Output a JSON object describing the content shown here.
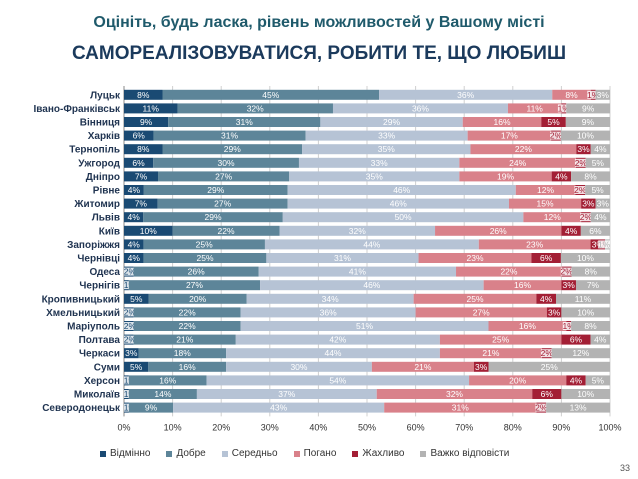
{
  "title": "Оцініть, будь ласка, рівень можливостей у Вашому місті",
  "subtitle": "САМОРЕАЛІЗОВУВАТИСЯ, РОБИТИ ТЕ, ЩО ЛЮБИШ",
  "page_number": "33",
  "chart_data": {
    "type": "bar",
    "orientation": "horizontal",
    "stacked": "100%",
    "x_ticks": [
      "0%",
      "10%",
      "20%",
      "30%",
      "40%",
      "50%",
      "60%",
      "70%",
      "80%",
      "90%",
      "100%"
    ],
    "xlim": [
      0,
      100
    ],
    "grid": true,
    "legend_position": "bottom",
    "categories": [
      "Луцьк",
      "Івано-Франківськ",
      "Вінниця",
      "Харків",
      "Тернопіль",
      "Ужгород",
      "Дніпро",
      "Рівне",
      "Житомир",
      "Львів",
      "Київ",
      "Запоріжжя",
      "Чернівці",
      "Одеса",
      "Чернігів",
      "Кропивницький",
      "Хмельницький",
      "Маріуполь",
      "Полтава",
      "Черкаси",
      "Суми",
      "Херсон",
      "Миколаїв",
      "Северодонецьк"
    ],
    "series": [
      {
        "name": "Відмінно",
        "color": "#1a4a73",
        "values": [
          8,
          11,
          9,
          6,
          8,
          6,
          7,
          4,
          7,
          4,
          10,
          4,
          4,
          2,
          1,
          5,
          2,
          2,
          2,
          3,
          5,
          1,
          1,
          1
        ]
      },
      {
        "name": "Добре",
        "color": "#5d8599",
        "values": [
          45,
          32,
          31,
          31,
          29,
          30,
          27,
          29,
          27,
          29,
          22,
          25,
          25,
          26,
          27,
          20,
          22,
          22,
          21,
          18,
          16,
          16,
          14,
          9
        ]
      },
      {
        "name": "Середньо",
        "color": "#b6c3d5",
        "values": [
          36,
          36,
          29,
          33,
          35,
          33,
          35,
          46,
          46,
          50,
          32,
          44,
          31,
          41,
          46,
          34,
          36,
          51,
          42,
          44,
          30,
          54,
          37,
          43
        ]
      },
      {
        "name": "Погано",
        "color": "#d9818a",
        "values": [
          8,
          11,
          16,
          17,
          22,
          24,
          19,
          12,
          15,
          12,
          26,
          23,
          23,
          22,
          16,
          25,
          27,
          16,
          25,
          21,
          21,
          20,
          32,
          31
        ]
      },
      {
        "name": "Жахливо",
        "color": "#a31f35",
        "values": [
          1,
          1,
          5,
          2,
          3,
          2,
          4,
          2,
          3,
          2,
          4,
          3,
          6,
          2,
          3,
          4,
          3,
          1,
          6,
          2,
          3,
          4,
          6,
          2
        ]
      },
      {
        "name": "Важко відповісти",
        "color": "#b3b3b3",
        "values": [
          3,
          9,
          9,
          10,
          4,
          5,
          8,
          5,
          3,
          4,
          6,
          1,
          10,
          8,
          7,
          11,
          10,
          8,
          4,
          12,
          25,
          5,
          10,
          13
        ]
      }
    ]
  }
}
